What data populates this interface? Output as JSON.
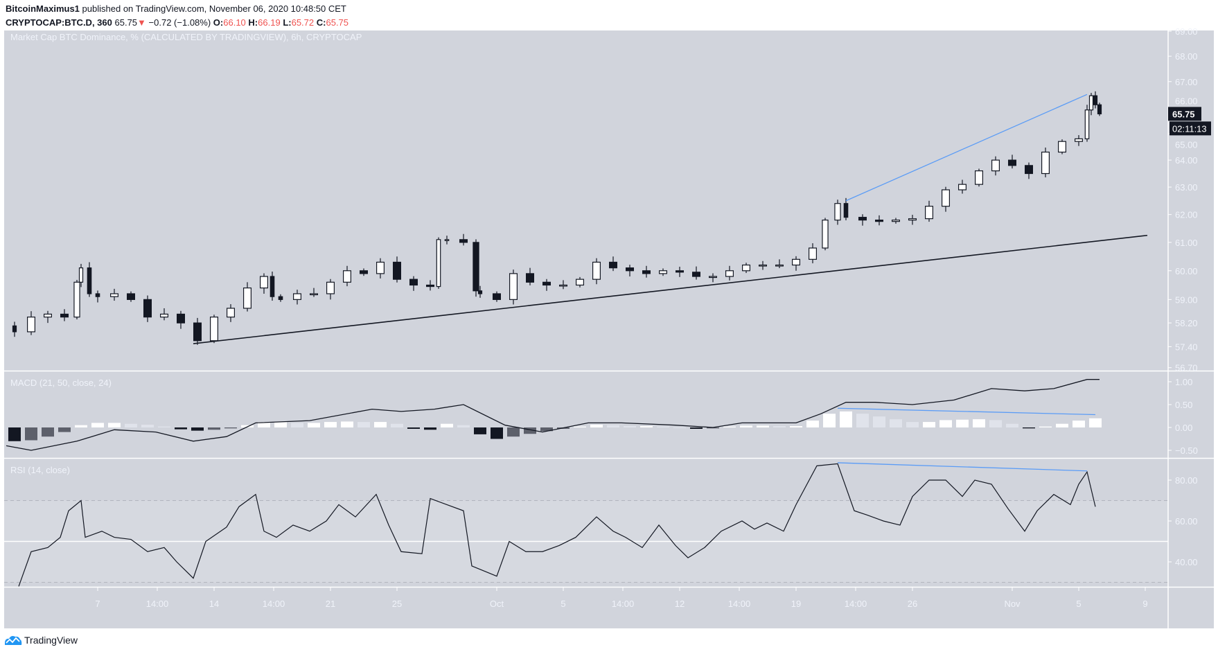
{
  "header": {
    "author": "BitcoinMaximus1",
    "published_text": "published on TradingView.com, November 06, 2020 10:48:50 CET",
    "symbol": "CRYPTOCAP:BTC.D, 360",
    "last": "65.75",
    "change": "−0.72 (−1.08%)",
    "open_label": "O:",
    "open": "66.10",
    "high_label": "H:",
    "high": "66.19",
    "low_label": "L:",
    "low": "65.72",
    "close_label": "C:",
    "close": "65.75"
  },
  "colors": {
    "pane_bg": "#d1d4dc",
    "rsi_band": "#d6d9e0",
    "candle_down": "#131722",
    "candle_up": "#ffffff",
    "trendline": "#131722",
    "divergence": "#5b9cf6",
    "text_light": "#f0f3fa",
    "down_red": "#ef5350",
    "logo_blue": "#2196f3"
  },
  "chart_data": [
    {
      "type": "candlestick",
      "title": "Market Cap BTC Dominance, % (CALCULATED BY TRADINGVIEW), 6h, CRYPTOCAP",
      "scale": "log",
      "ylim": [
        56.7,
        69.0
      ],
      "y_ticks": [
        "69.00",
        "68.00",
        "67.00",
        "66.00",
        "65.00",
        "64.00",
        "63.00",
        "62.00",
        "61.00",
        "60.00",
        "59.00",
        "58.20",
        "57.40",
        "56.70"
      ],
      "last_price_label": "65.75",
      "countdown_label": "02:11:13",
      "closes": [
        [
          "2020-09-01 18:00",
          58.1
        ],
        [
          "2020-09-02 00:00",
          57.9
        ],
        [
          "2020-09-03 00:00",
          58.4
        ],
        [
          "2020-09-04 00:00",
          58.5
        ],
        [
          "2020-09-05 00:00",
          58.4
        ],
        [
          "2020-09-05 18:00",
          59.6
        ],
        [
          "2020-09-06 00:00",
          60.1
        ],
        [
          "2020-09-06 12:00",
          59.2
        ],
        [
          "2020-09-07 00:00",
          59.1
        ],
        [
          "2020-09-08 00:00",
          59.2
        ],
        [
          "2020-09-09 00:00",
          59.0
        ],
        [
          "2020-09-10 00:00",
          58.4
        ],
        [
          "2020-09-11 00:00",
          58.5
        ],
        [
          "2020-09-12 00:00",
          58.2
        ],
        [
          "2020-09-13 00:00",
          57.6
        ],
        [
          "2020-09-14 00:00",
          58.4
        ],
        [
          "2020-09-15 00:00",
          58.7
        ],
        [
          "2020-09-16 00:00",
          59.4
        ],
        [
          "2020-09-17 00:00",
          59.8
        ],
        [
          "2020-09-17 12:00",
          59.1
        ],
        [
          "2020-09-18 00:00",
          59.0
        ],
        [
          "2020-09-19 00:00",
          59.2
        ],
        [
          "2020-09-20 00:00",
          59.2
        ],
        [
          "2020-09-21 00:00",
          59.6
        ],
        [
          "2020-09-22 00:00",
          60.0
        ],
        [
          "2020-09-23 00:00",
          59.9
        ],
        [
          "2020-09-24 00:00",
          60.3
        ],
        [
          "2020-09-25 00:00",
          59.7
        ],
        [
          "2020-09-26 00:00",
          59.5
        ],
        [
          "2020-09-27 00:00",
          59.45
        ],
        [
          "2020-09-27 12:00",
          61.1
        ],
        [
          "2020-09-28 00:00",
          61.1
        ],
        [
          "2020-09-29 00:00",
          61.0
        ],
        [
          "2020-09-29 18:00",
          59.3
        ],
        [
          "2020-09-30 00:00",
          59.2
        ],
        [
          "2020-10-01 00:00",
          59.0
        ],
        [
          "2020-10-02 00:00",
          59.9
        ],
        [
          "2020-10-03 00:00",
          59.6
        ],
        [
          "2020-10-04 00:00",
          59.5
        ],
        [
          "2020-10-05 00:00",
          59.5
        ],
        [
          "2020-10-06 00:00",
          59.7
        ],
        [
          "2020-10-07 00:00",
          60.3
        ],
        [
          "2020-10-08 00:00",
          60.1
        ],
        [
          "2020-10-09 00:00",
          60.0
        ],
        [
          "2020-10-10 00:00",
          59.9
        ],
        [
          "2020-10-11 00:00",
          60.0
        ],
        [
          "2020-10-12 00:00",
          59.95
        ],
        [
          "2020-10-13 00:00",
          59.8
        ],
        [
          "2020-10-14 00:00",
          59.8
        ],
        [
          "2020-10-15 00:00",
          60.0
        ],
        [
          "2020-10-16 00:00",
          60.2
        ],
        [
          "2020-10-17 00:00",
          60.2
        ],
        [
          "2020-10-18 00:00",
          60.2
        ],
        [
          "2020-10-19 00:00",
          60.4
        ],
        [
          "2020-10-20 00:00",
          60.8
        ],
        [
          "2020-10-20 18:00",
          61.8
        ],
        [
          "2020-10-21 12:00",
          62.4
        ],
        [
          "2020-10-22 00:00",
          61.9
        ],
        [
          "2020-10-23 00:00",
          61.8
        ],
        [
          "2020-10-24 00:00",
          61.75
        ],
        [
          "2020-10-25 00:00",
          61.8
        ],
        [
          "2020-10-26 00:00",
          61.85
        ],
        [
          "2020-10-27 00:00",
          62.3
        ],
        [
          "2020-10-28 00:00",
          62.9
        ],
        [
          "2020-10-29 00:00",
          63.1
        ],
        [
          "2020-10-30 00:00",
          63.6
        ],
        [
          "2020-10-31 00:00",
          64.0
        ],
        [
          "2020-11-01 00:00",
          63.8
        ],
        [
          "2020-11-02 00:00",
          63.5
        ],
        [
          "2020-11-03 00:00",
          64.3
        ],
        [
          "2020-11-04 00:00",
          64.7
        ],
        [
          "2020-11-05 00:00",
          64.8
        ],
        [
          "2020-11-05 12:00",
          65.9
        ],
        [
          "2020-11-05 18:00",
          66.45
        ],
        [
          "2020-11-06 00:00",
          66.1
        ],
        [
          "2020-11-06 06:00",
          65.75
        ]
      ],
      "trendlines": [
        {
          "color": "#131722",
          "from": [
            "2020-09-12 18:00",
            57.5
          ],
          "to": [
            "2020-11-09 03:00",
            61.25
          ]
        },
        {
          "color": "#5b9cf6",
          "from": [
            "2020-10-22 00:00",
            62.5
          ],
          "to": [
            "2020-11-05 12:00",
            66.5
          ]
        }
      ]
    },
    {
      "type": "macd",
      "title": "MACD (21, 50, close, 24)",
      "ylim": [
        -0.7,
        1.2
      ],
      "y_ticks": [
        "1.00",
        "0.50",
        "0.00",
        "−0.50"
      ],
      "y_tick_values": [
        1.0,
        0.5,
        0.0,
        -0.5
      ],
      "macd_line": [
        [
          "2020-09-01 12:00",
          -0.4
        ],
        [
          "2020-09-03 00:00",
          -0.5
        ],
        [
          "2020-09-05 18:00",
          -0.3
        ],
        [
          "2020-09-08 00:00",
          -0.05
        ],
        [
          "2020-09-10 12:00",
          -0.1
        ],
        [
          "2020-09-12 18:00",
          -0.3
        ],
        [
          "2020-09-14 18:00",
          -0.2
        ],
        [
          "2020-09-16 12:00",
          0.1
        ],
        [
          "2020-09-19 18:00",
          0.15
        ],
        [
          "2020-09-23 12:00",
          0.4
        ],
        [
          "2020-09-25 06:00",
          0.35
        ],
        [
          "2020-09-27 06:00",
          0.4
        ],
        [
          "2020-09-29 00:00",
          0.5
        ],
        [
          "2020-10-01 12:00",
          0.05
        ],
        [
          "2020-10-03 18:00",
          -0.1
        ],
        [
          "2020-10-06 12:00",
          0.1
        ],
        [
          "2020-10-08 12:00",
          0.1
        ],
        [
          "2020-10-11 18:00",
          0.05
        ],
        [
          "2020-10-14 00:00",
          0.0
        ],
        [
          "2020-10-15 18:00",
          0.1
        ],
        [
          "2020-10-19 00:00",
          0.1
        ],
        [
          "2020-10-20 12:00",
          0.3
        ],
        [
          "2020-10-22 00:00",
          0.55
        ],
        [
          "2020-10-23 18:00",
          0.55
        ],
        [
          "2020-10-26 00:00",
          0.5
        ],
        [
          "2020-10-28 12:00",
          0.6
        ],
        [
          "2020-10-30 18:00",
          0.85
        ],
        [
          "2020-11-01 18:00",
          0.8
        ],
        [
          "2020-11-03 12:00",
          0.85
        ],
        [
          "2020-11-05 12:00",
          1.05
        ],
        [
          "2020-11-06 06:00",
          1.05
        ]
      ],
      "histogram": [
        [
          "2020-09-02",
          -0.3
        ],
        [
          "2020-09-03",
          -0.28
        ],
        [
          "2020-09-04",
          -0.2
        ],
        [
          "2020-09-05",
          -0.1
        ],
        [
          "2020-09-06",
          0.05
        ],
        [
          "2020-09-07",
          0.1
        ],
        [
          "2020-09-08",
          0.1
        ],
        [
          "2020-09-09",
          0.08
        ],
        [
          "2020-09-10",
          0.06
        ],
        [
          "2020-09-11",
          0.02
        ],
        [
          "2020-09-12",
          -0.04
        ],
        [
          "2020-09-13",
          -0.07
        ],
        [
          "2020-09-14",
          -0.05
        ],
        [
          "2020-09-15",
          -0.02
        ],
        [
          "2020-09-16",
          0.05
        ],
        [
          "2020-09-17",
          0.12
        ],
        [
          "2020-09-18",
          0.12
        ],
        [
          "2020-09-19",
          0.1
        ],
        [
          "2020-09-20",
          0.1
        ],
        [
          "2020-09-21",
          0.12
        ],
        [
          "2020-09-22",
          0.13
        ],
        [
          "2020-09-23",
          0.12
        ],
        [
          "2020-09-24",
          0.12
        ],
        [
          "2020-09-25",
          0.08
        ],
        [
          "2020-09-26",
          -0.03
        ],
        [
          "2020-09-27",
          -0.05
        ],
        [
          "2020-09-28",
          0.08
        ],
        [
          "2020-09-29",
          0.05
        ],
        [
          "2020-09-30",
          -0.15
        ],
        [
          "2020-10-01",
          -0.25
        ],
        [
          "2020-10-02",
          -0.2
        ],
        [
          "2020-10-03",
          -0.14
        ],
        [
          "2020-10-04",
          -0.08
        ],
        [
          "2020-10-05",
          -0.03
        ],
        [
          "2020-10-06",
          0.02
        ],
        [
          "2020-10-07",
          0.06
        ],
        [
          "2020-10-08",
          0.05
        ],
        [
          "2020-10-09",
          0.03
        ],
        [
          "2020-10-10",
          0.03
        ],
        [
          "2020-10-11",
          0.02
        ],
        [
          "2020-10-12",
          0.0
        ],
        [
          "2020-10-13",
          -0.03
        ],
        [
          "2020-10-14",
          -0.02
        ],
        [
          "2020-10-15",
          0.02
        ],
        [
          "2020-10-16",
          0.04
        ],
        [
          "2020-10-17",
          0.04
        ],
        [
          "2020-10-18",
          0.03
        ],
        [
          "2020-10-19",
          0.03
        ],
        [
          "2020-10-20",
          0.15
        ],
        [
          "2020-10-21",
          0.3
        ],
        [
          "2020-10-22",
          0.35
        ],
        [
          "2020-10-23",
          0.3
        ],
        [
          "2020-10-24",
          0.24
        ],
        [
          "2020-10-25",
          0.18
        ],
        [
          "2020-10-26",
          0.12
        ],
        [
          "2020-10-27",
          0.12
        ],
        [
          "2020-10-28",
          0.16
        ],
        [
          "2020-10-29",
          0.17
        ],
        [
          "2020-10-30",
          0.18
        ],
        [
          "2020-10-31",
          0.16
        ],
        [
          "2020-11-01",
          0.08
        ],
        [
          "2020-11-02",
          -0.02
        ],
        [
          "2020-11-03",
          0.02
        ],
        [
          "2020-11-04",
          0.08
        ],
        [
          "2020-11-05",
          0.15
        ],
        [
          "2020-11-06",
          0.2
        ]
      ],
      "trendlines": [
        {
          "color": "#5b9cf6",
          "from": [
            "2020-10-21 12:00",
            0.42
          ],
          "to": [
            "2020-11-06 00:00",
            0.28
          ]
        }
      ]
    },
    {
      "type": "line",
      "title": "RSI (14, close)",
      "ylim": [
        23,
        92
      ],
      "y_ticks": [
        "80.00",
        "60.00",
        "40.00"
      ],
      "y_tick_values": [
        80,
        60,
        40
      ],
      "bands": {
        "upper": 70,
        "middle": 50,
        "lower": 30
      },
      "values": [
        [
          "2020-09-02 06:00",
          28
        ],
        [
          "2020-09-03 00:00",
          45
        ],
        [
          "2020-09-04 00:00",
          47
        ],
        [
          "2020-09-04 18:00",
          52
        ],
        [
          "2020-09-05 06:00",
          65
        ],
        [
          "2020-09-06 00:00",
          70
        ],
        [
          "2020-09-06 06:00",
          52
        ],
        [
          "2020-09-07 06:00",
          55
        ],
        [
          "2020-09-08 00:00",
          52
        ],
        [
          "2020-09-09 00:00",
          51
        ],
        [
          "2020-09-10 00:00",
          45
        ],
        [
          "2020-09-11 00:00",
          47
        ],
        [
          "2020-09-11 18:00",
          40
        ],
        [
          "2020-09-12 18:00",
          32
        ],
        [
          "2020-09-13 12:00",
          50
        ],
        [
          "2020-09-14 18:00",
          57
        ],
        [
          "2020-09-15 12:00",
          67
        ],
        [
          "2020-09-16 12:00",
          73
        ],
        [
          "2020-09-17 00:00",
          55
        ],
        [
          "2020-09-17 18:00",
          52
        ],
        [
          "2020-09-18 18:00",
          58
        ],
        [
          "2020-09-19 18:00",
          55
        ],
        [
          "2020-09-20 18:00",
          60
        ],
        [
          "2020-09-21 12:00",
          68
        ],
        [
          "2020-09-22 12:00",
          62
        ],
        [
          "2020-09-23 18:00",
          73
        ],
        [
          "2020-09-24 12:00",
          58
        ],
        [
          "2020-09-25 06:00",
          45
        ],
        [
          "2020-09-26 12:00",
          44
        ],
        [
          "2020-09-27 00:00",
          71
        ],
        [
          "2020-09-28 00:00",
          68
        ],
        [
          "2020-09-29 00:00",
          65
        ],
        [
          "2020-09-29 12:00",
          38
        ],
        [
          "2020-10-01 00:00",
          33
        ],
        [
          "2020-10-01 18:00",
          50
        ],
        [
          "2020-10-02 18:00",
          45
        ],
        [
          "2020-10-03 18:00",
          45
        ],
        [
          "2020-10-04 18:00",
          48
        ],
        [
          "2020-10-05 18:00",
          52
        ],
        [
          "2020-10-07 00:00",
          62
        ],
        [
          "2020-10-08 00:00",
          55
        ],
        [
          "2020-10-08 18:00",
          52
        ],
        [
          "2020-10-09 18:00",
          47
        ],
        [
          "2020-10-10 18:00",
          58
        ],
        [
          "2020-10-11 18:00",
          48
        ],
        [
          "2020-10-12 12:00",
          42
        ],
        [
          "2020-10-13 12:00",
          47
        ],
        [
          "2020-10-14 12:00",
          55
        ],
        [
          "2020-10-15 18:00",
          60
        ],
        [
          "2020-10-16 12:00",
          56
        ],
        [
          "2020-10-17 06:00",
          59
        ],
        [
          "2020-10-18 06:00",
          55
        ],
        [
          "2020-10-19 00:00",
          68
        ],
        [
          "2020-10-20 06:00",
          87
        ],
        [
          "2020-10-21 12:00",
          88
        ],
        [
          "2020-10-22 12:00",
          65
        ],
        [
          "2020-10-23 06:00",
          63
        ],
        [
          "2020-10-24 06:00",
          60
        ],
        [
          "2020-10-25 06:00",
          58
        ],
        [
          "2020-10-26 00:00",
          72
        ],
        [
          "2020-10-27 00:00",
          80
        ],
        [
          "2020-10-28 00:00",
          80
        ],
        [
          "2020-10-29 00:00",
          72
        ],
        [
          "2020-10-29 18:00",
          80
        ],
        [
          "2020-10-30 18:00",
          78
        ],
        [
          "2020-10-31 18:00",
          66
        ],
        [
          "2020-11-01 18:00",
          55
        ],
        [
          "2020-11-02 12:00",
          65
        ],
        [
          "2020-11-03 12:00",
          73
        ],
        [
          "2020-11-04 12:00",
          68
        ],
        [
          "2020-11-05 00:00",
          78
        ],
        [
          "2020-11-05 12:00",
          84
        ],
        [
          "2020-11-06 00:00",
          67
        ]
      ],
      "trendlines": [
        {
          "color": "#5b9cf6",
          "from": [
            "2020-10-21 12:00",
            88.5
          ],
          "to": [
            "2020-11-05 12:00",
            84.5
          ]
        }
      ]
    }
  ],
  "time_axis": [
    [
      "7",
      "2020-09-07 00:00"
    ],
    [
      "14:00",
      "2020-09-10 14:00"
    ],
    [
      "14",
      "2020-09-14 00:00"
    ],
    [
      "14:00",
      "2020-09-17 14:00"
    ],
    [
      "21",
      "2020-09-21 00:00"
    ],
    [
      "25",
      "2020-09-25 00:00"
    ],
    [
      "Oct",
      "2020-10-01 00:00"
    ],
    [
      "5",
      "2020-10-05 00:00"
    ],
    [
      "14:00",
      "2020-10-08 14:00"
    ],
    [
      "12",
      "2020-10-12 00:00"
    ],
    [
      "14:00",
      "2020-10-15 14:00"
    ],
    [
      "19",
      "2020-10-19 00:00"
    ],
    [
      "14:00",
      "2020-10-22 14:00"
    ],
    [
      "26",
      "2020-10-26 00:00"
    ],
    [
      "Nov",
      "2020-11-01 00:00"
    ],
    [
      "5",
      "2020-11-05 00:00"
    ],
    [
      "9",
      "2020-11-09 00:00"
    ]
  ],
  "footer": {
    "logo_text": "TradingView"
  }
}
